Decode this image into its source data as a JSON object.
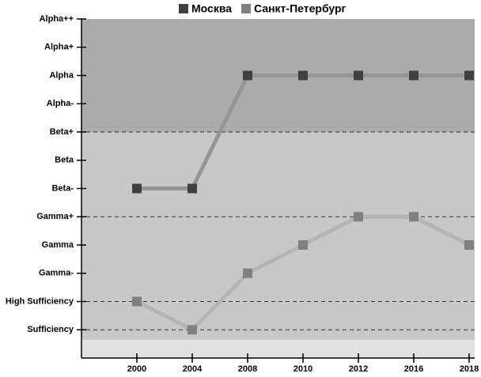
{
  "chart_data": {
    "type": "line",
    "categories": [
      "2000",
      "2004",
      "2008",
      "2010",
      "2012",
      "2016",
      "2018"
    ],
    "series": [
      {
        "name": "Москва",
        "color": "#404040",
        "line_color": "#959595",
        "values": [
          6,
          6,
          10,
          10,
          10,
          10,
          10
        ]
      },
      {
        "name": "Санкт-Петербург",
        "color": "#808080",
        "line_color": "#b4b4b4",
        "values": [
          2,
          1,
          3,
          4,
          5,
          5,
          4
        ]
      }
    ],
    "ylim": [
      0,
      12
    ],
    "yticks": [
      {
        "value": 1,
        "label": "Sufficiency"
      },
      {
        "value": 2,
        "label": "High Sufficiency"
      },
      {
        "value": 3,
        "label": "Gamma-"
      },
      {
        "value": 4,
        "label": "Gamma"
      },
      {
        "value": 5,
        "label": "Gamma+"
      },
      {
        "value": 6,
        "label": "Beta-"
      },
      {
        "value": 7,
        "label": "Beta"
      },
      {
        "value": 8,
        "label": "Beta+"
      },
      {
        "value": 9,
        "label": "Alpha-"
      },
      {
        "value": 10,
        "label": "Alpha"
      },
      {
        "value": 11,
        "label": "Alpha+"
      },
      {
        "value": 12,
        "label": "Alpha++"
      }
    ],
    "legend": "top"
  }
}
